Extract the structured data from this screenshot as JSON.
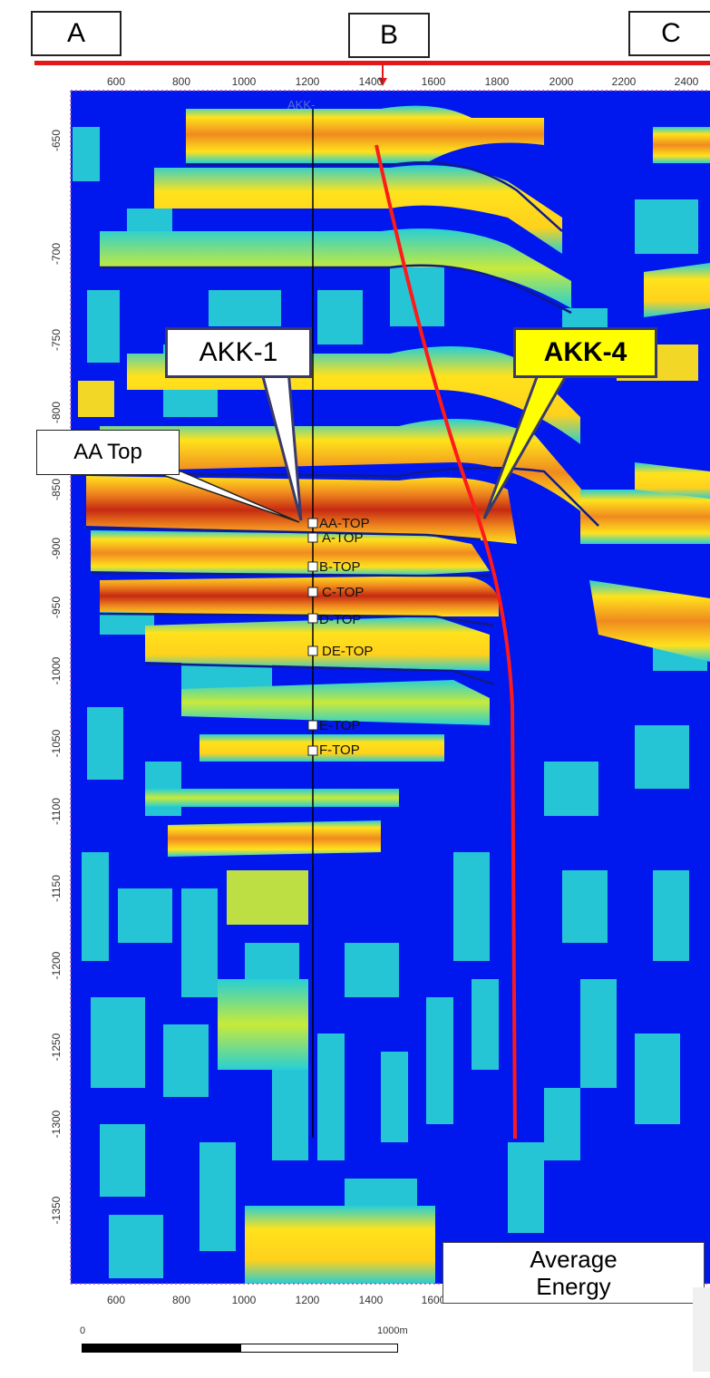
{
  "top_labels": {
    "a": "A",
    "b": "B",
    "c": "C"
  },
  "x_axis": {
    "ticks": [
      "600",
      "800",
      "1000",
      "1200",
      "1400",
      "1600",
      "1800",
      "2000",
      "2200",
      "2400"
    ]
  },
  "y_axis": {
    "ticks": [
      "-650",
      "-700",
      "-750",
      "-800",
      "-850",
      "-900",
      "-950",
      "-1000",
      "-1050",
      "-1100",
      "-1150",
      "-1200",
      "-1250",
      "-1300",
      "-1350"
    ]
  },
  "well_top_label": "AKK-",
  "well_markers": [
    "AA-TOP",
    "A-TOP",
    "B-TOP",
    "C-TOP",
    "D-TOP",
    "DE-TOP",
    "E-TOP",
    "F-TOP"
  ],
  "callouts": {
    "akk1": "AKK-1",
    "akk4": "AKK-4",
    "aa_top": "AA Top"
  },
  "attribute_label": "Average Energy",
  "scale_bar": {
    "start": "0",
    "end": "1000m"
  },
  "colors": {
    "background_low": "#0018ee",
    "low_mid": "#27cfd4",
    "mid": "#ffe21c",
    "high": "#f08a1f",
    "peak": "#c62a12",
    "fault_line": "#ff1a1a",
    "horizon_line": "#101a8a",
    "callout_yellow": "#ffff00"
  }
}
